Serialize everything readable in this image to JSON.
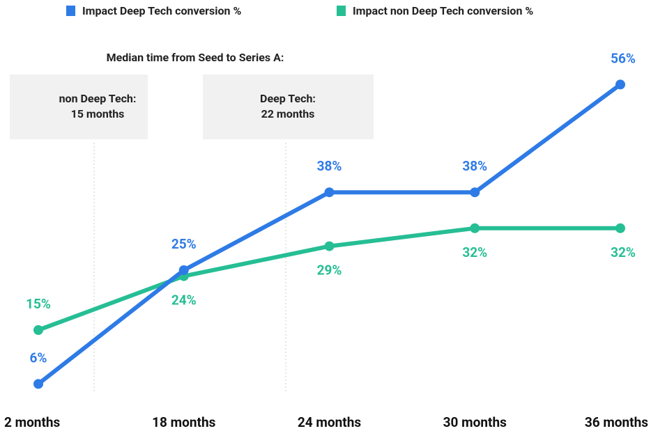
{
  "chart_data": {
    "type": "line",
    "categories": [
      "2 months",
      "18 months",
      "24 months",
      "30 months",
      "36 months"
    ],
    "series": [
      {
        "name": "Impact Deep Tech conversion %",
        "color": "#2e7be6",
        "values": [
          6,
          25,
          38,
          38,
          56
        ],
        "value_labels": [
          "6%",
          "25%",
          "38%",
          "38%",
          "56%"
        ]
      },
      {
        "name": "Impact non Deep Tech conversion %",
        "color": "#26be94",
        "values": [
          15,
          24,
          29,
          32,
          32
        ],
        "value_labels": [
          "15%",
          "24%",
          "29%",
          "32%",
          "32%"
        ]
      }
    ],
    "legend": "top",
    "annotations": {
      "heading": "Median time from Seed to Series A:",
      "boxes": [
        [
          "non Deep Tech:",
          "15 months"
        ],
        [
          "Deep Tech:",
          "22 months"
        ]
      ]
    }
  }
}
